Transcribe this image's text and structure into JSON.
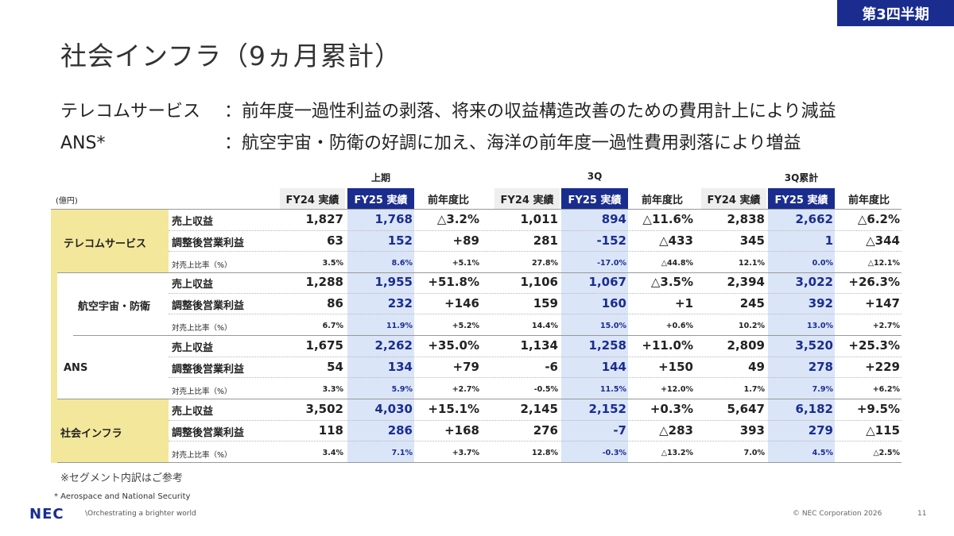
{
  "badge": "第3四半期",
  "title": "社会インフラ（9ヵ月累計）",
  "desc": [
    {
      "label": "テレコムサービス",
      "text": "：前年度一過性利益の剥落、将来の収益構造改善のための費用計上により減益"
    },
    {
      "label": "ANS*",
      "text": "：航空宇宙・防衛の好調に加え、海洋の前年度一過性費用剥落により増益"
    }
  ],
  "table": {
    "unit": "(億円)",
    "groups": [
      "上期",
      "3Q",
      "3Q累計"
    ],
    "headers": [
      "FY24 実績",
      "FY25 実績",
      "前年度比"
    ],
    "segments": [
      {
        "name": "テレコムサービス",
        "rows": [
          {
            "label": "売上収益",
            "values": [
              "1,827",
              "1,768",
              "△3.2%",
              "1,011",
              "894",
              "△11.6%",
              "2,838",
              "2,662",
              "△6.2%"
            ]
          },
          {
            "label": "調整後営業利益",
            "values": [
              "63",
              "152",
              "+89",
              "281",
              "-152",
              "△433",
              "345",
              "1",
              "△344"
            ]
          },
          {
            "label": "対売上比率（%）",
            "values": [
              "3.5%",
              "8.6%",
              "+5.1%",
              "27.8%",
              "-17.0%",
              "△44.8%",
              "12.1%",
              "0.0%",
              "△12.1%"
            ]
          }
        ]
      },
      {
        "name": "航空宇宙・防衛",
        "rows": [
          {
            "label": "売上収益",
            "values": [
              "1,288",
              "1,955",
              "+51.8%",
              "1,106",
              "1,067",
              "△3.5%",
              "2,394",
              "3,022",
              "+26.3%"
            ]
          },
          {
            "label": "調整後営業利益",
            "values": [
              "86",
              "232",
              "+146",
              "159",
              "160",
              "+1",
              "245",
              "392",
              "+147"
            ]
          },
          {
            "label": "対売上比率（%）",
            "values": [
              "6.7%",
              "11.9%",
              "+5.2%",
              "14.4%",
              "15.0%",
              "+0.6%",
              "10.2%",
              "13.0%",
              "+2.7%"
            ]
          }
        ]
      },
      {
        "name": "ANS",
        "rows": [
          {
            "label": "売上収益",
            "values": [
              "1,675",
              "2,262",
              "+35.0%",
              "1,134",
              "1,258",
              "+11.0%",
              "2,809",
              "3,520",
              "+25.3%"
            ]
          },
          {
            "label": "調整後営業利益",
            "values": [
              "54",
              "134",
              "+79",
              "-6",
              "144",
              "+150",
              "49",
              "278",
              "+229"
            ]
          },
          {
            "label": "対売上比率（%）",
            "values": [
              "3.3%",
              "5.9%",
              "+2.7%",
              "-0.5%",
              "11.5%",
              "+12.0%",
              "1.7%",
              "7.9%",
              "+6.2%"
            ]
          }
        ]
      },
      {
        "name": "社会インフラ",
        "rows": [
          {
            "label": "売上収益",
            "values": [
              "3,502",
              "4,030",
              "+15.1%",
              "2,145",
              "2,152",
              "+0.3%",
              "5,647",
              "6,182",
              "+9.5%"
            ]
          },
          {
            "label": "調整後営業利益",
            "values": [
              "118",
              "286",
              "+168",
              "276",
              "-7",
              "△283",
              "393",
              "279",
              "△115"
            ]
          },
          {
            "label": "対売上比率（%）",
            "values": [
              "3.4%",
              "7.1%",
              "+3.7%",
              "12.8%",
              "-0.3%",
              "△13.2%",
              "7.0%",
              "4.5%",
              "△2.5%"
            ]
          }
        ]
      }
    ]
  },
  "note": "※セグメント内訳はご参考",
  "footnote": "* Aerospace and National Security",
  "logo": "NEC",
  "tagline": "\\Orchestrating a brighter world",
  "copyright": "© NEC Corporation 2026",
  "page_number": "11"
}
